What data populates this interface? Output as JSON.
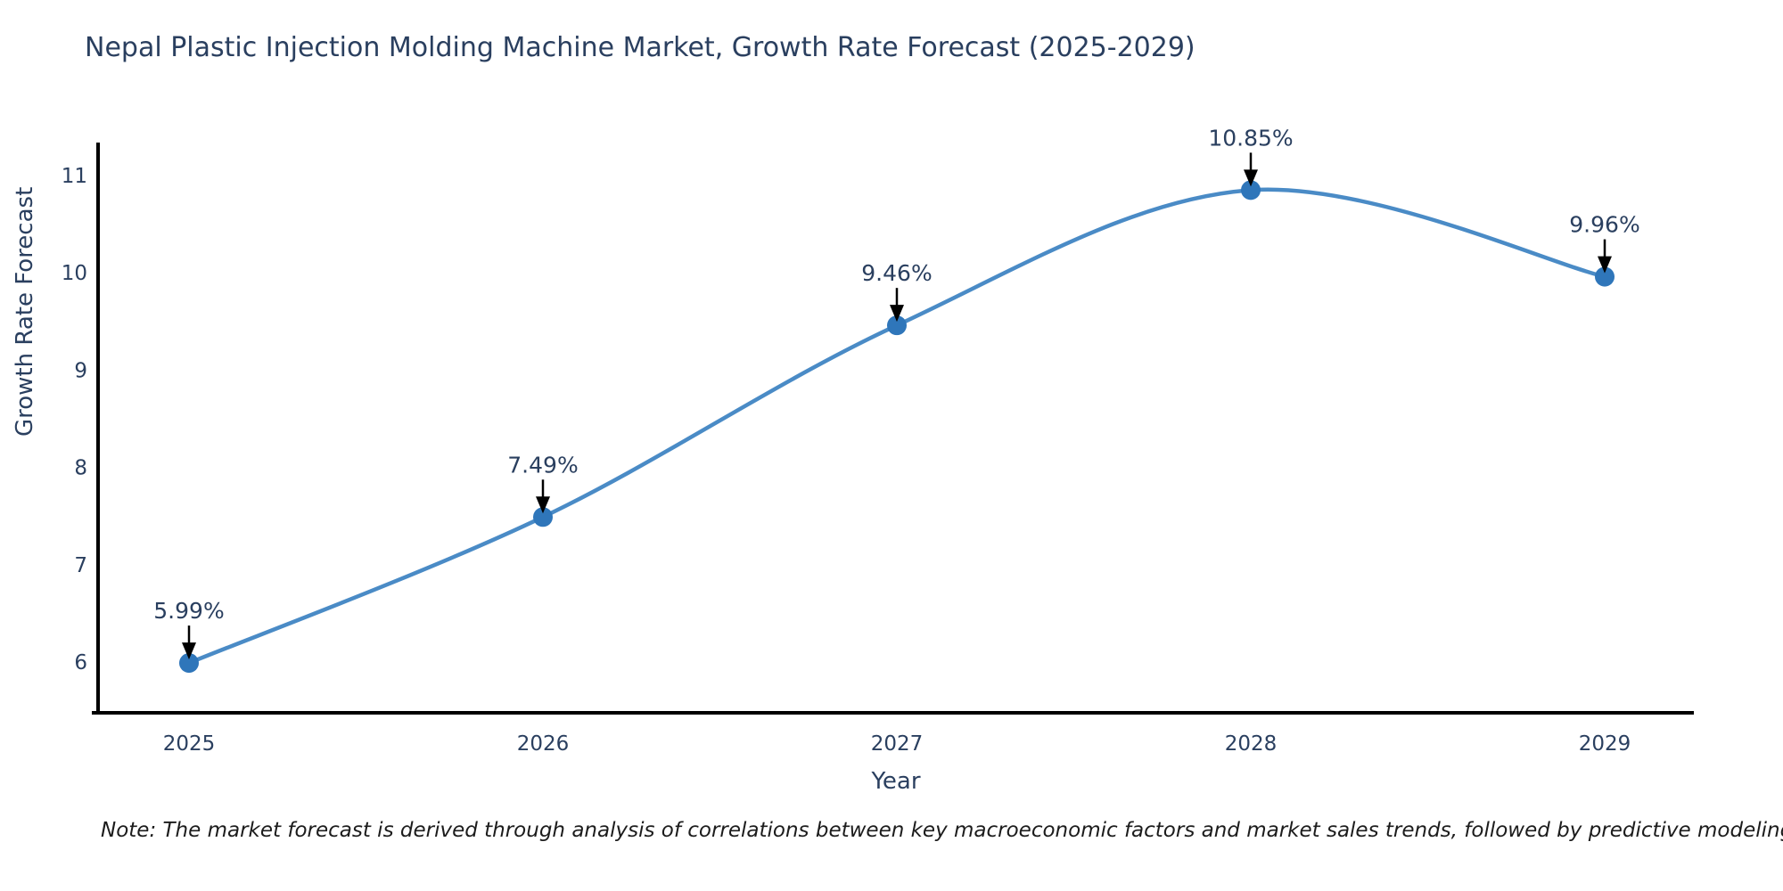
{
  "note": "Note: The market forecast is derived through analysis of correlations between key macroeconomic factors and market sales trends, followed by predictive modeling to project future sales",
  "chart_data": {
    "type": "line",
    "line_shape": "spline",
    "title": "Nepal Plastic Injection Molding Machine Market, Growth Rate Forecast (2025-2029)",
    "xlabel": "Year",
    "ylabel": "Growth Rate Forecast",
    "x": [
      2025,
      2026,
      2027,
      2028,
      2029
    ],
    "values": [
      5.99,
      7.49,
      9.46,
      10.85,
      9.96
    ],
    "point_labels": [
      "5.99%",
      "7.49%",
      "9.46%",
      "10.85%",
      "9.96%"
    ],
    "yticks": [
      6,
      7,
      8,
      9,
      10,
      11
    ],
    "ylim": [
      5.48,
      11.6
    ],
    "grid": false,
    "legend_position": "none",
    "line_color": "#4a8bc6",
    "marker_color": "#2f76ba",
    "axis_color": "#000000",
    "annotation_arrow_color": "#000000",
    "text_color": "#2a3f5f"
  }
}
